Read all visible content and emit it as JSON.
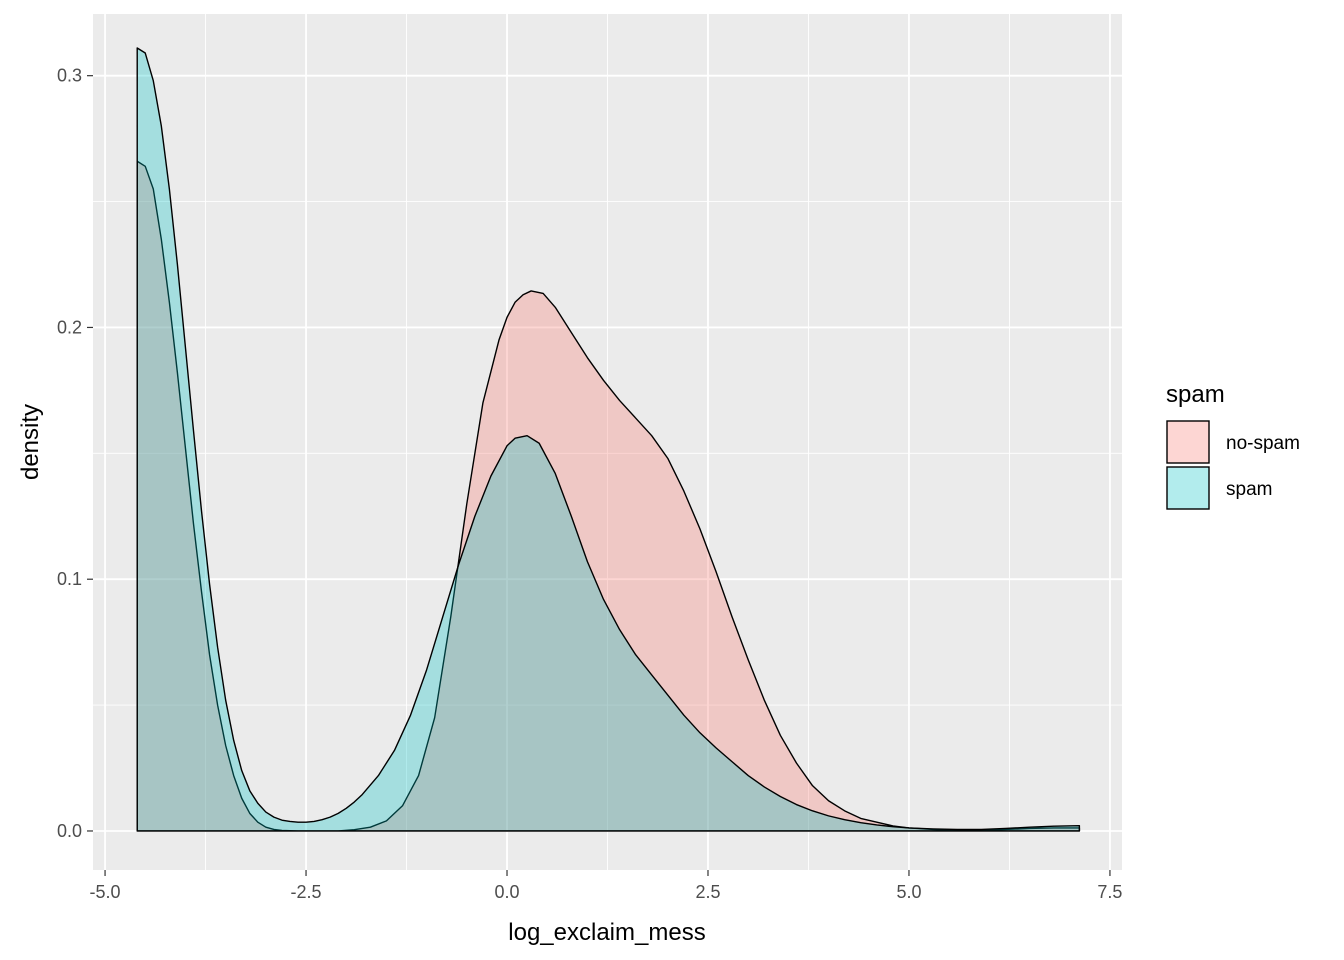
{
  "chart_data": {
    "type": "area",
    "title": "",
    "xlabel": "log_exclaim_mess",
    "ylabel": "density",
    "xlim": [
      -5.15,
      7.65
    ],
    "ylim": [
      -0.0155,
      0.3245
    ],
    "x_ticks": [
      -5.0,
      -2.5,
      0.0,
      2.5,
      5.0,
      7.5
    ],
    "x_tick_labels": [
      "-5.0",
      "-2.5",
      "0.0",
      "2.5",
      "5.0",
      "7.5"
    ],
    "y_ticks": [
      0.0,
      0.1,
      0.2,
      0.3
    ],
    "y_tick_labels": [
      "0.0",
      "0.1",
      "0.2",
      "0.3"
    ],
    "grid": true,
    "legend": {
      "title": "spam",
      "position": "right"
    },
    "series": [
      {
        "name": "no-spam",
        "color": "#F8766D",
        "x": [
          -4.6,
          -4.5,
          -4.4,
          -4.3,
          -4.2,
          -4.1,
          -4.0,
          -3.9,
          -3.8,
          -3.7,
          -3.6,
          -3.5,
          -3.4,
          -3.3,
          -3.2,
          -3.1,
          -3.0,
          -2.9,
          -2.8,
          -2.7,
          -2.6,
          -2.5,
          -2.3,
          -2.1,
          -1.9,
          -1.7,
          -1.5,
          -1.3,
          -1.1,
          -0.9,
          -0.7,
          -0.5,
          -0.3,
          -0.1,
          0.0,
          0.1,
          0.2,
          0.3,
          0.45,
          0.6,
          0.8,
          1.0,
          1.2,
          1.4,
          1.6,
          1.8,
          2.0,
          2.2,
          2.4,
          2.6,
          2.8,
          3.0,
          3.2,
          3.4,
          3.6,
          3.8,
          4.0,
          4.2,
          4.4,
          4.6,
          4.8,
          5.0,
          5.3,
          5.6,
          5.9,
          6.2,
          6.5,
          6.8,
          7.12
        ],
        "values": [
          0.266,
          0.264,
          0.255,
          0.235,
          0.21,
          0.182,
          0.152,
          0.122,
          0.095,
          0.07,
          0.05,
          0.034,
          0.022,
          0.013,
          0.007,
          0.0035,
          0.0015,
          0.0006,
          0.0002,
          0.0001,
          0.0,
          0.0,
          0.0,
          0.0,
          0.0005,
          0.0015,
          0.004,
          0.01,
          0.022,
          0.045,
          0.085,
          0.13,
          0.17,
          0.195,
          0.204,
          0.21,
          0.213,
          0.2145,
          0.2135,
          0.208,
          0.198,
          0.188,
          0.179,
          0.171,
          0.164,
          0.157,
          0.148,
          0.135,
          0.12,
          0.103,
          0.085,
          0.068,
          0.052,
          0.038,
          0.027,
          0.018,
          0.012,
          0.008,
          0.005,
          0.0035,
          0.002,
          0.0012,
          0.0006,
          0.0003,
          0.0003,
          0.0006,
          0.001,
          0.0012,
          0.0012
        ]
      },
      {
        "name": "spam",
        "color": "#00BFC4",
        "x": [
          -4.6,
          -4.5,
          -4.4,
          -4.3,
          -4.2,
          -4.1,
          -4.0,
          -3.9,
          -3.8,
          -3.7,
          -3.6,
          -3.5,
          -3.4,
          -3.3,
          -3.2,
          -3.1,
          -3.0,
          -2.9,
          -2.8,
          -2.7,
          -2.6,
          -2.5,
          -2.4,
          -2.3,
          -2.2,
          -2.1,
          -2.0,
          -1.9,
          -1.8,
          -1.6,
          -1.4,
          -1.2,
          -1.0,
          -0.8,
          -0.6,
          -0.4,
          -0.2,
          0.0,
          0.1,
          0.25,
          0.4,
          0.6,
          0.8,
          1.0,
          1.2,
          1.4,
          1.6,
          1.8,
          2.0,
          2.2,
          2.4,
          2.6,
          2.8,
          3.0,
          3.2,
          3.4,
          3.6,
          3.8,
          4.0,
          4.2,
          4.4,
          4.6,
          4.8,
          5.0,
          5.3,
          5.6,
          5.9,
          6.2,
          6.5,
          6.8,
          7.12
        ],
        "values": [
          0.311,
          0.309,
          0.298,
          0.28,
          0.255,
          0.225,
          0.192,
          0.159,
          0.127,
          0.098,
          0.073,
          0.052,
          0.036,
          0.024,
          0.016,
          0.011,
          0.0075,
          0.0055,
          0.0043,
          0.0038,
          0.0035,
          0.0035,
          0.0038,
          0.0045,
          0.0055,
          0.007,
          0.009,
          0.0115,
          0.0145,
          0.022,
          0.032,
          0.046,
          0.064,
          0.085,
          0.106,
          0.125,
          0.141,
          0.153,
          0.156,
          0.157,
          0.154,
          0.142,
          0.125,
          0.107,
          0.092,
          0.08,
          0.07,
          0.062,
          0.054,
          0.046,
          0.039,
          0.033,
          0.0275,
          0.022,
          0.0175,
          0.0137,
          0.0105,
          0.008,
          0.006,
          0.0045,
          0.0033,
          0.0024,
          0.0017,
          0.0012,
          0.0008,
          0.0006,
          0.0006,
          0.001,
          0.0015,
          0.0019,
          0.0021
        ]
      }
    ]
  }
}
